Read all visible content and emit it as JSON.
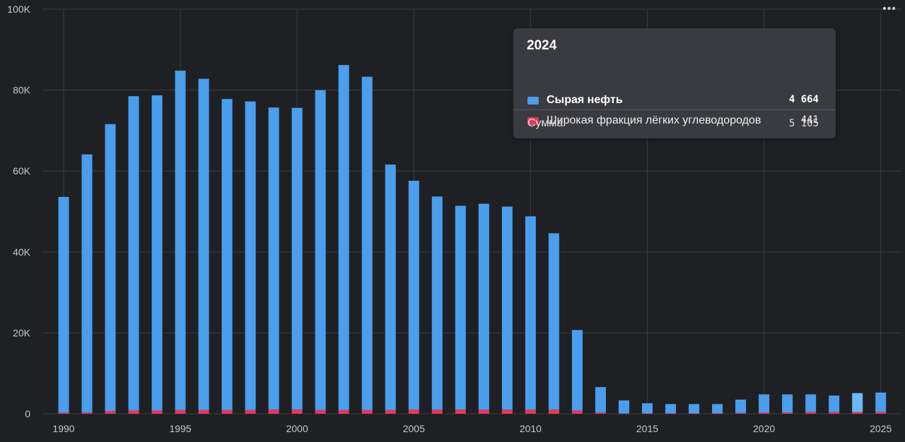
{
  "chart_data": {
    "type": "bar",
    "stacked": true,
    "title": "",
    "xlabel": "",
    "ylabel": "",
    "ylim": [
      0,
      100000
    ],
    "y_ticks": [
      "0",
      "20K",
      "40K",
      "60K",
      "80K",
      "100K"
    ],
    "x_ticks": [
      "1990",
      "1995",
      "2000",
      "2005",
      "2010",
      "2015",
      "2020",
      "2025"
    ],
    "grid": true,
    "legend": "none",
    "categories": [
      1990,
      1991,
      1992,
      1993,
      1994,
      1995,
      1996,
      1997,
      1998,
      1999,
      2000,
      2001,
      2002,
      2003,
      2004,
      2005,
      2006,
      2007,
      2008,
      2009,
      2010,
      2011,
      2012,
      2013,
      2014,
      2015,
      2016,
      2017,
      2018,
      2019,
      2020,
      2021,
      2022,
      2023,
      2024,
      2025
    ],
    "highlighted_category": 2024,
    "series": [
      {
        "name": "Сырая нефть",
        "color": "#4a9eec",
        "highlight_color": "#6bb8f6",
        "values": [
          53300,
          63800,
          70900,
          77700,
          77900,
          83900,
          81900,
          76900,
          76300,
          74700,
          74600,
          79100,
          85300,
          82400,
          60700,
          56600,
          52700,
          50400,
          50900,
          50200,
          47800,
          43600,
          19900,
          6300,
          3200,
          2500,
          2300,
          2300,
          2300,
          3300,
          4500,
          4500,
          4400,
          4100,
          4664,
          4800
        ]
      },
      {
        "name": "Широкая фракция лёгких углеводородов",
        "color": "#e8375a",
        "values": [
          300,
          300,
          700,
          800,
          800,
          900,
          900,
          900,
          900,
          1000,
          1000,
          900,
          900,
          900,
          900,
          1000,
          1000,
          1000,
          1000,
          1000,
          1000,
          1000,
          800,
          300,
          100,
          100,
          100,
          100,
          100,
          200,
          300,
          300,
          400,
          400,
          441,
          450
        ]
      }
    ]
  },
  "tooltip": {
    "title": "2024",
    "rows": [
      {
        "name": "Сырая нефть",
        "value": "4 664",
        "color": "#4a9eec"
      },
      {
        "name": "Широкая фракция лёгких углеводородов",
        "value": "441",
        "color": "#e8375a"
      }
    ],
    "sum_label": "Сумма",
    "sum_value": "5 105"
  },
  "menu": {
    "label": "•••"
  }
}
